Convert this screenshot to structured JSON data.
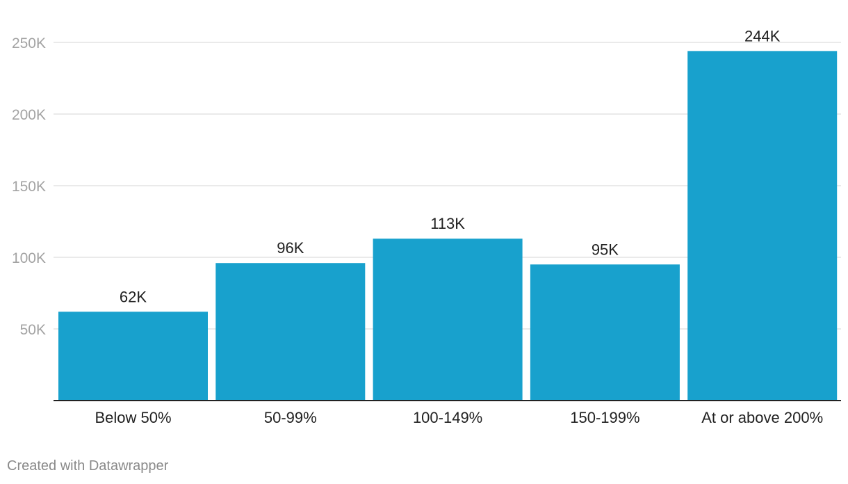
{
  "chart_data": {
    "type": "bar",
    "categories": [
      "Below 50%",
      "50-99%",
      "100-149%",
      "150-199%",
      "At or above 200%"
    ],
    "values": [
      62000,
      96000,
      113000,
      95000,
      244000
    ],
    "data_labels": [
      "62K",
      "96K",
      "113K",
      "95K",
      "244K"
    ],
    "yticks": [
      {
        "value": 50000,
        "label": "50K"
      },
      {
        "value": 100000,
        "label": "100K"
      },
      {
        "value": 150000,
        "label": "150K"
      },
      {
        "value": 200000,
        "label": "200K"
      },
      {
        "value": 250000,
        "label": "250K"
      }
    ],
    "ylim": [
      0,
      250000
    ],
    "grid": true,
    "legend": "none",
    "bar_color": "#18a1cd"
  },
  "footer": {
    "credit": "Created with Datawrapper"
  }
}
